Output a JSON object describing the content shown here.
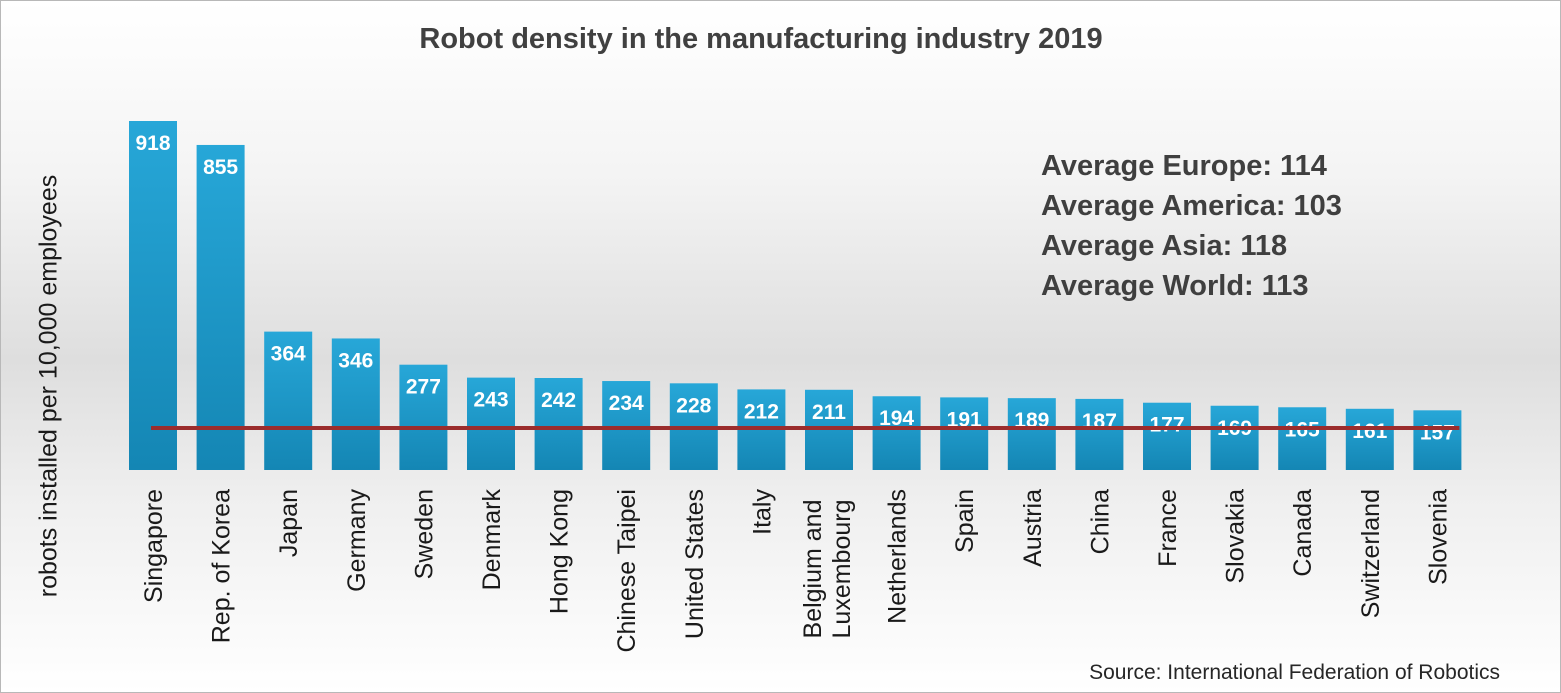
{
  "chart_data": {
    "type": "bar",
    "title": "Robot density in the manufacturing industry 2019",
    "ylabel": "robots installed per 10,000 employees",
    "xlabel": "",
    "categories": [
      "Singapore",
      "Rep. of Korea",
      "Japan",
      "Germany",
      "Sweden",
      "Denmark",
      "Hong Kong",
      "Chinese Taipei",
      "United States",
      "Italy",
      "Belgium and Luxembourg",
      "Netherlands",
      "Spain",
      "Austria",
      "China",
      "France",
      "Slovakia",
      "Canada",
      "Switzerland",
      "Slovenia"
    ],
    "values": [
      918,
      855,
      364,
      346,
      277,
      243,
      242,
      234,
      228,
      212,
      211,
      194,
      191,
      189,
      187,
      177,
      169,
      165,
      161,
      157
    ],
    "reference_line": {
      "value": 113,
      "color": "#9b2d2d"
    },
    "ylim": [
      0,
      918
    ],
    "grid": false,
    "legend": "none",
    "bar_color": "#1f9bcd",
    "annotations": [
      "Average Europe: 114",
      "Average America: 103",
      "Average Asia: 118",
      "Average World: 113"
    ],
    "source": "Source: International Federation of Robotics"
  }
}
